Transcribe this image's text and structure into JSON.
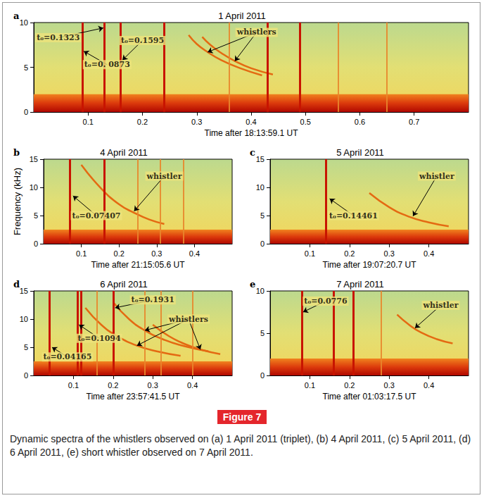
{
  "figure_label": "Figure 7",
  "caption": "Dynamic spectra of the whistlers observed on (a) 1 April 2011 (triplet), (b) 4 April 2011, (c) 5 April 2011, (d) 6 April 2011, (e) short whistler observed on 7 April 2011.",
  "chart_data": [
    {
      "type": "spectrogram",
      "letter": "a",
      "title": "1 April 2011",
      "x_label": "Time after 18:13:59.1 UT",
      "xlim": [
        0,
        0.8
      ],
      "xticks": [
        0.1,
        0.2,
        0.3,
        0.4,
        0.5,
        0.6,
        0.7
      ],
      "ylim": [
        0,
        10
      ],
      "yticks": [
        0,
        5,
        10
      ],
      "grid": false,
      "low_band": [
        0,
        2
      ],
      "sferics": [
        0.087,
        0.132,
        0.16,
        0.24,
        0.435,
        0.495
      ],
      "faint_sferics": [
        0.36,
        0.555,
        0.65
      ],
      "whistlers": [
        [
          [
            0.285,
            8.6
          ],
          [
            0.3,
            7.6
          ],
          [
            0.32,
            6.7
          ],
          [
            0.345,
            5.8
          ],
          [
            0.38,
            4.9
          ],
          [
            0.42,
            4.1
          ]
        ],
        [
          [
            0.31,
            8.4
          ],
          [
            0.325,
            7.5
          ],
          [
            0.345,
            6.6
          ],
          [
            0.37,
            5.7
          ],
          [
            0.4,
            4.9
          ],
          [
            0.44,
            4.2
          ]
        ]
      ],
      "annotations": [
        {
          "text": "t₀=0.1323",
          "at": [
            0.045,
            8.3
          ],
          "arrows": [
            [
              0.128,
              9.4
            ]
          ]
        },
        {
          "text": "t₀=0. 0873",
          "at": [
            0.135,
            5.3
          ],
          "arrows": [
            [
              0.092,
              6.8
            ]
          ]
        },
        {
          "text": "t₀=0.1595",
          "at": [
            0.2,
            8.0
          ],
          "arrows": [
            [
              0.163,
              5.8
            ]
          ]
        },
        {
          "text": "whistlers",
          "at": [
            0.41,
            8.9
          ],
          "arrows": [
            [
              0.32,
              6.7
            ],
            [
              0.37,
              5.7
            ]
          ]
        }
      ]
    },
    {
      "type": "spectrogram",
      "letter": "b",
      "title": "4 April 2011",
      "x_label": "Time after 21:15:05.6 UT",
      "y_label": "Frequency (kHz)",
      "xlim": [
        0,
        0.5
      ],
      "xticks": [
        0.1,
        0.2,
        0.3,
        0.4
      ],
      "ylim": [
        0,
        15
      ],
      "yticks": [
        0,
        5,
        10,
        15
      ],
      "grid": false,
      "low_band": [
        0,
        2.5
      ],
      "sferics": [
        0.074,
        0.16
      ],
      "faint_sferics": [
        0.25,
        0.31,
        0.37
      ],
      "whistlers": [
        [
          [
            0.1,
            14
          ],
          [
            0.15,
            10
          ],
          [
            0.2,
            7
          ],
          [
            0.24,
            5.5
          ],
          [
            0.28,
            4.3
          ],
          [
            0.32,
            3.5
          ]
        ]
      ],
      "annotations": [
        {
          "text": "t₀=0.07407",
          "at": [
            0.14,
            5.0
          ],
          "arrows": [
            [
              0.078,
              8.5
            ]
          ]
        },
        {
          "text": "whistler",
          "at": [
            0.32,
            12
          ],
          "arrows": [
            [
              0.24,
              5.8
            ]
          ]
        }
      ]
    },
    {
      "type": "spectrogram",
      "letter": "c",
      "title": "5 April 2011",
      "x_label": "Time after 19:07:20.7 UT",
      "xlim": [
        0,
        0.5
      ],
      "xticks": [
        0.1,
        0.2,
        0.3,
        0.4
      ],
      "ylim": [
        0,
        15
      ],
      "yticks": [
        0,
        5,
        10,
        15
      ],
      "grid": false,
      "low_band": [
        0,
        2.5
      ],
      "sferics": [
        0.145
      ],
      "faint_sferics": [],
      "whistlers": [
        [
          [
            0.25,
            9
          ],
          [
            0.3,
            6.5
          ],
          [
            0.35,
            4.8
          ],
          [
            0.4,
            3.8
          ],
          [
            0.45,
            3.1
          ]
        ]
      ],
      "annotations": [
        {
          "text": "t₀=0.14461",
          "at": [
            0.21,
            5.0
          ],
          "arrows": [
            [
              0.15,
              8
            ]
          ]
        },
        {
          "text": "whistler",
          "at": [
            0.42,
            12
          ],
          "arrows": [
            [
              0.36,
              4.9
            ]
          ]
        }
      ]
    },
    {
      "type": "spectrogram",
      "letter": "d",
      "title": "6 April 2011",
      "x_label": "Time after 23:57:41.5 UT",
      "xlim": [
        0,
        0.5
      ],
      "xticks": [
        0.1,
        0.2,
        0.3,
        0.4
      ],
      "ylim": [
        0,
        15
      ],
      "yticks": [
        0,
        5,
        10,
        15
      ],
      "grid": false,
      "low_band": [
        0,
        2.5
      ],
      "sferics": [
        0.042,
        0.11,
        0.12,
        0.2
      ],
      "faint_sferics": [
        0.16,
        0.28,
        0.32,
        0.4
      ],
      "whistlers": [
        [
          [
            0.2,
            13
          ],
          [
            0.24,
            10
          ],
          [
            0.28,
            8
          ],
          [
            0.33,
            6.3
          ],
          [
            0.38,
            5.2
          ],
          [
            0.44,
            4.3
          ]
        ],
        [
          [
            0.13,
            12
          ],
          [
            0.17,
            9
          ],
          [
            0.21,
            7
          ],
          [
            0.26,
            5.3
          ],
          [
            0.31,
            4.3
          ],
          [
            0.37,
            3.5
          ]
        ],
        [
          [
            0.3,
            9
          ],
          [
            0.34,
            7
          ],
          [
            0.38,
            5.6
          ],
          [
            0.42,
            4.6
          ],
          [
            0.47,
            3.8
          ]
        ]
      ],
      "annotations": [
        {
          "text": "t₀=0.04165",
          "at": [
            0.085,
            3.3
          ],
          "arrows": [
            [
              0.046,
              5
            ]
          ]
        },
        {
          "text": "t₀=0.1094",
          "at": [
            0.165,
            6.6
          ],
          "arrows": [
            [
              0.114,
              9
            ]
          ]
        },
        {
          "text": "t₀=0.1931",
          "at": [
            0.3,
            13.4
          ],
          "arrows": [
            [
              0.205,
              12
            ]
          ]
        },
        {
          "text": "whistlers",
          "at": [
            0.39,
            10
          ],
          "arrows": [
            [
              0.28,
              8
            ],
            [
              0.26,
              5.3
            ],
            [
              0.42,
              4.6
            ]
          ]
        }
      ]
    },
    {
      "type": "spectrogram",
      "letter": "e",
      "title": "7 April 2011",
      "x_label": "Time after 01:03:17.5 UT",
      "xlim": [
        0,
        0.5
      ],
      "xticks": [
        0.1,
        0.2,
        0.3,
        0.4
      ],
      "ylim": [
        0,
        10
      ],
      "yticks": [
        0,
        5,
        10
      ],
      "grid": false,
      "low_band": [
        0,
        2
      ],
      "sferics": [
        0.078,
        0.16,
        0.21
      ],
      "faint_sferics": [
        0.28
      ],
      "whistlers": [
        [
          [
            0.32,
            7.2
          ],
          [
            0.35,
            6
          ],
          [
            0.38,
            5.1
          ],
          [
            0.42,
            4.3
          ],
          [
            0.46,
            3.8
          ]
        ]
      ],
      "annotations": [
        {
          "text": "t₀=0.0776",
          "at": [
            0.14,
            8.8
          ],
          "arrows": [
            [
              0.083,
              7.5
            ]
          ]
        },
        {
          "text": "whistler",
          "at": [
            0.43,
            8.3
          ],
          "arrows": [
            [
              0.365,
              5.6
            ]
          ]
        }
      ]
    }
  ]
}
